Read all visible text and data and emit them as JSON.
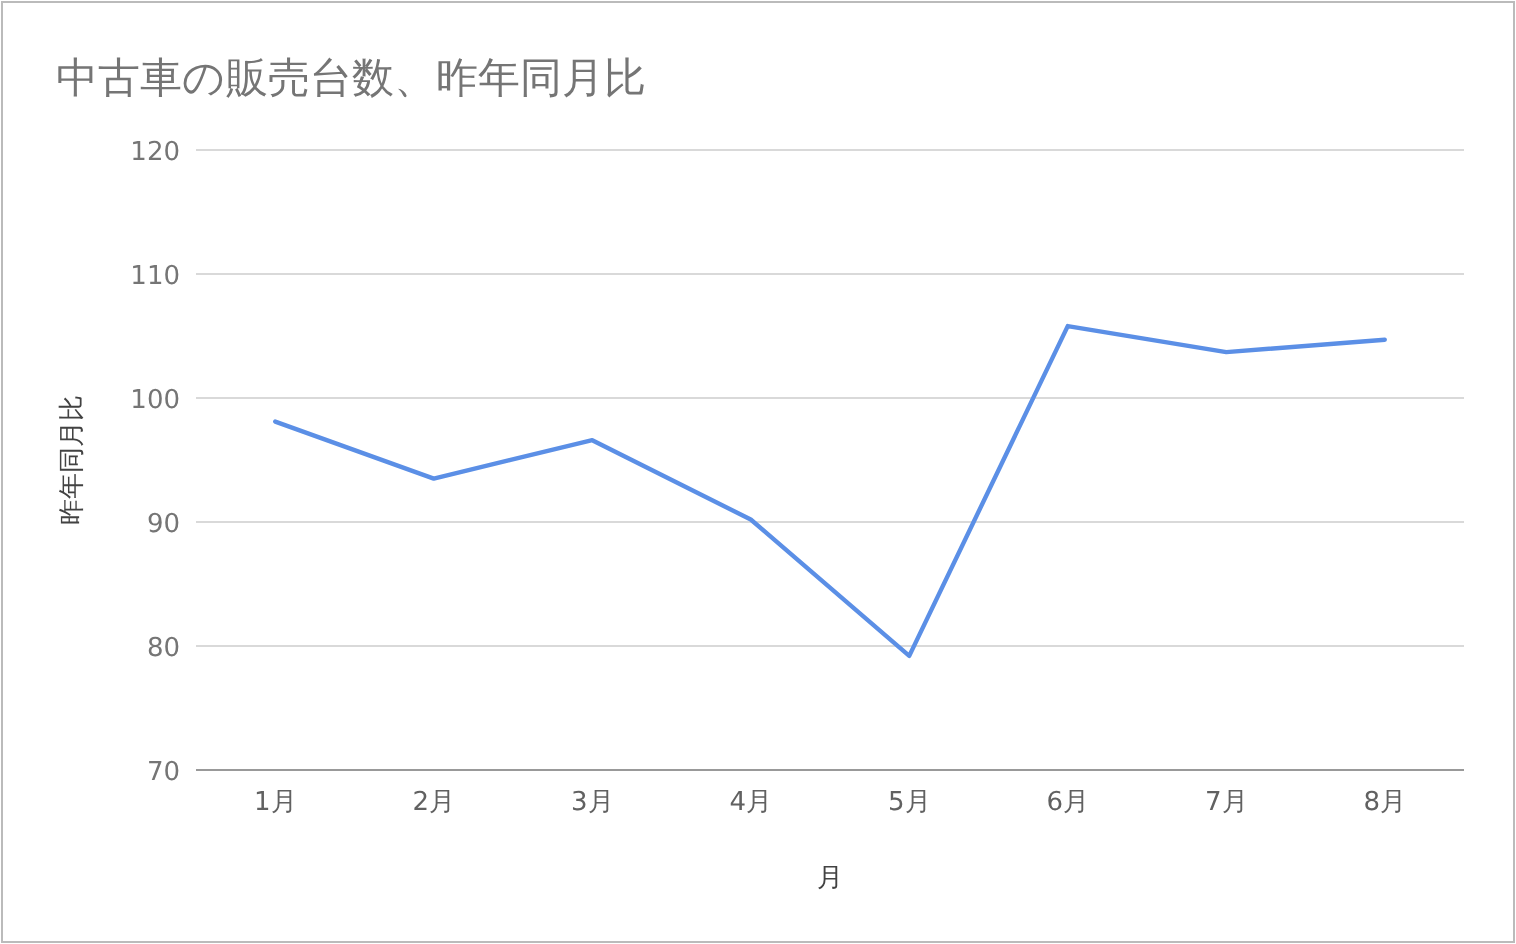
{
  "chart_data": {
    "type": "line",
    "title": "中古車の販売台数、昨年同月比",
    "xlabel": "月",
    "ylabel": "昨年同月比",
    "categories": [
      "1月",
      "2月",
      "3月",
      "4月",
      "5月",
      "6月",
      "7月",
      "8月"
    ],
    "series": [
      {
        "color": "#5b8fe6",
        "values": [
          98.1,
          93.5,
          96.6,
          90.2,
          79.2,
          105.8,
          103.7,
          104.7
        ]
      }
    ],
    "ylim": [
      70,
      120
    ],
    "yticks": [
      70,
      80,
      90,
      100,
      110,
      120
    ],
    "grid": "y",
    "marker": "none",
    "line_style": "solid"
  }
}
